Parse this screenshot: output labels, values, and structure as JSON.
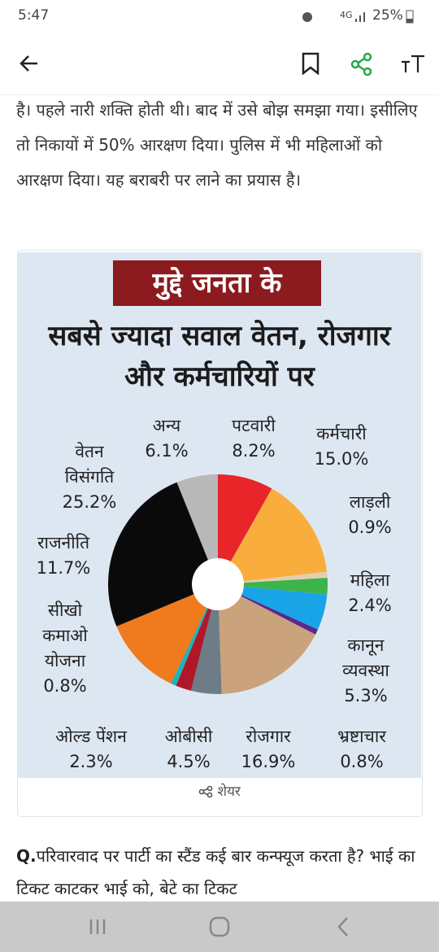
{
  "status_bar": {
    "time": "5:47",
    "network": "4G",
    "battery": "25%"
  },
  "article": {
    "paragraph": "है। पहले नारी शक्ति होती थी। बाद में उसे बोझ समझा गया। इसीलिए तो निकायों में 50% आरक्षण दिया। पुलिस में भी महिलाओं को आरक्षण दिया। यह बराबरी पर लाने का प्रयास है।",
    "question_prefix": "Q.",
    "question": "परिवारवाद पर पार्टी का स्टैंड कई बार कन्फ्यूज करता है? भाई का टिकट काटकर भाई को, बेटे का टिकट"
  },
  "share_label": "शेयर",
  "chart_data": {
    "type": "pie",
    "title": "मुद्दे जनता के",
    "subtitle": "सबसे ज्यादा सवाल वेतन, रोजगार और कर्मचारियों पर",
    "categories": [
      "पटवारी",
      "कर्मचारी",
      "लाड़ली",
      "महिला",
      "कानून व्यवस्था",
      "भ्रष्टाचार",
      "रोजगार",
      "ओबीसी",
      "ओल्ड पेंशन",
      "सीखो कमाओ योजना",
      "राजनीति",
      "वेतन विसंगति",
      "अन्य"
    ],
    "values": [
      8.2,
      15.0,
      0.9,
      2.4,
      5.3,
      0.8,
      16.9,
      4.5,
      2.3,
      0.8,
      11.7,
      25.2,
      6.1
    ],
    "value_labels": [
      "8.2%",
      "15.0%",
      "0.9%",
      "2.4%",
      "5.3%",
      "0.8%",
      "16.9%",
      "4.5%",
      "2.3%",
      "0.8%",
      "11.7%",
      "25.2%",
      "6.1%"
    ],
    "colors": [
      "#e8262a",
      "#f9ad3c",
      "#e3cfae",
      "#3cb44a",
      "#1aa4e8",
      "#5a2a8a",
      "#caa27c",
      "#6e7c88",
      "#b0182a",
      "#1cb4b8",
      "#f07a1e",
      "#0a0a0a",
      "#b8b8b8"
    ]
  }
}
